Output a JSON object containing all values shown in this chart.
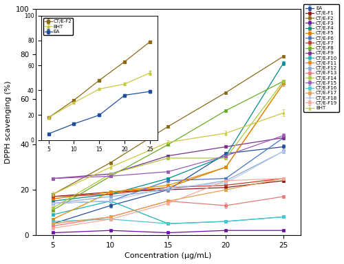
{
  "x": [
    5,
    10,
    15,
    20,
    25
  ],
  "series": {
    "EA": [
      5,
      13,
      20,
      36,
      39
    ],
    "CT/E-F1": [
      17,
      19,
      20,
      21,
      24
    ],
    "CT/E-F2": [
      18,
      32,
      48,
      63,
      79
    ],
    "CT/E-F3": [
      1,
      2,
      1,
      2,
      2
    ],
    "CT/E-F4": [
      15,
      18,
      25,
      35,
      76
    ],
    "CT/E-F5": [
      16,
      19,
      21,
      30,
      67
    ],
    "CT/E-F6": [
      14,
      15,
      24,
      25,
      43
    ],
    "CT/E-F7": [
      17,
      18,
      21,
      22,
      25
    ],
    "CT/E-F8": [
      11,
      26,
      40,
      55,
      68
    ],
    "CT/E-F9": [
      25,
      27,
      35,
      39,
      43
    ],
    "CT/E-F10": [
      9,
      15,
      5,
      6,
      8
    ],
    "CT/E-F11": [
      7,
      19,
      22,
      30,
      67
    ],
    "CT/E-F12": [
      14,
      17,
      20,
      24,
      37
    ],
    "CT/E-F13": [
      4,
      8,
      15,
      13,
      17
    ],
    "CT/E-F14": [
      12,
      27,
      34,
      34,
      68
    ],
    "CT/E-F15": [
      25,
      26,
      28,
      35,
      44
    ],
    "CT/E-F16": [
      6,
      7,
      5,
      6,
      8
    ],
    "CT/E-F17": [
      5,
      8,
      15,
      20,
      25
    ],
    "CT/E-F18": [
      14,
      15,
      21,
      23,
      37
    ],
    "CT/E-F19": [
      3,
      7,
      14,
      24,
      25
    ],
    "BHT": [
      18,
      30,
      41,
      45,
      54
    ]
  },
  "colors": {
    "EA": "#1f4e9b",
    "CT/E-F1": "#8b1a1a",
    "CT/E-F2": "#8b6914",
    "CT/E-F3": "#6a0dad",
    "CT/E-F4": "#008b8b",
    "CT/E-F5": "#e07800",
    "CT/E-F6": "#4472c4",
    "CT/E-F7": "#c0392b",
    "CT/E-F8": "#6aab20",
    "CT/E-F9": "#7b2d8b",
    "CT/E-F10": "#20b0b8",
    "CT/E-F11": "#e08c00",
    "CT/E-F12": "#8ca8d8",
    "CT/E-F13": "#e87878",
    "CT/E-F14": "#a8c840",
    "CT/E-F15": "#9b59b6",
    "CT/E-F16": "#48c8d0",
    "CT/E-F17": "#e0a050",
    "CT/E-F18": "#b8c8f0",
    "CT/E-F19": "#f8a898",
    "BHT": "#c8c840"
  },
  "markers": {
    "EA": "s",
    "CT/E-F1": "s",
    "CT/E-F2": "s",
    "CT/E-F3": "s",
    "CT/E-F4": "s",
    "CT/E-F5": "s",
    "CT/E-F6": "s",
    "CT/E-F7": "s",
    "CT/E-F8": "s",
    "CT/E-F9": "s",
    "CT/E-F10": "s",
    "CT/E-F11": "s",
    "CT/E-F12": "s",
    "CT/E-F13": "s",
    "CT/E-F14": "s",
    "CT/E-F15": "s",
    "CT/E-F16": "s",
    "CT/E-F17": "s",
    "CT/E-F18": "o",
    "CT/E-F19": "s",
    "BHT": "^"
  },
  "errors": {
    "EA": [
      0.8,
      0.8,
      0.8,
      0.8,
      1.0
    ],
    "CT/E-F1": [
      0.5,
      0.5,
      0.5,
      0.5,
      0.8
    ],
    "CT/E-F2": [
      0.5,
      0.5,
      0.5,
      0.5,
      0.5
    ],
    "CT/E-F3": [
      0.2,
      0.2,
      0.2,
      0.2,
      0.3
    ],
    "CT/E-F4": [
      0.5,
      0.5,
      0.5,
      0.5,
      1.0
    ],
    "CT/E-F5": [
      0.5,
      0.5,
      0.5,
      0.5,
      1.0
    ],
    "CT/E-F6": [
      0.5,
      0.5,
      0.5,
      0.5,
      0.8
    ],
    "CT/E-F7": [
      0.5,
      0.5,
      0.5,
      0.5,
      0.5
    ],
    "CT/E-F8": [
      0.5,
      0.5,
      0.5,
      0.5,
      0.5
    ],
    "CT/E-F9": [
      0.5,
      0.5,
      0.5,
      0.5,
      0.8
    ],
    "CT/E-F10": [
      0.5,
      0.5,
      0.5,
      0.5,
      0.5
    ],
    "CT/E-F11": [
      0.5,
      0.5,
      0.5,
      0.5,
      1.0
    ],
    "CT/E-F12": [
      0.5,
      0.5,
      0.5,
      0.5,
      0.8
    ],
    "CT/E-F13": [
      0.5,
      0.5,
      0.5,
      1.2,
      0.5
    ],
    "CT/E-F14": [
      0.5,
      0.5,
      0.5,
      0.5,
      0.5
    ],
    "CT/E-F15": [
      0.5,
      0.5,
      0.5,
      0.5,
      0.8
    ],
    "CT/E-F16": [
      0.5,
      0.5,
      0.5,
      0.5,
      0.5
    ],
    "CT/E-F17": [
      0.5,
      0.5,
      0.5,
      0.5,
      0.5
    ],
    "CT/E-F18": [
      0.5,
      0.5,
      0.5,
      0.5,
      0.8
    ],
    "CT/E-F19": [
      0.5,
      0.5,
      0.5,
      0.5,
      0.5
    ],
    "BHT": [
      1.0,
      1.0,
      1.0,
      1.0,
      1.5
    ]
  },
  "inset_series": [
    "CT/E-F2",
    "BHT",
    "EA"
  ],
  "ylabel": "DPPH scavenging (%)",
  "xlabel": "Concentration (μg/mL)",
  "ylim": [
    0,
    100
  ],
  "xlim": [
    3.5,
    26.5
  ],
  "yticks": [
    0,
    20,
    40,
    60,
    80,
    100
  ],
  "xticks": [
    5,
    10,
    15,
    20,
    25
  ]
}
